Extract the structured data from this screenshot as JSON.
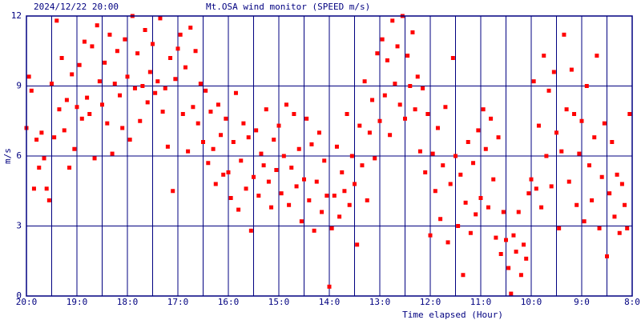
{
  "chart_data": {
    "type": "scatter",
    "title": "2024/12/22 20:00",
    "subtitle": "Mt.OSA wind monitor (SPEED m/s)",
    "y_label": "m/s",
    "x_label": "Time elapsed (Hour)",
    "color": "#ff0000",
    "grid": true,
    "xlim": [
      0,
      12
    ],
    "ylim": [
      0,
      12
    ],
    "yticks": [
      0,
      3,
      6,
      9,
      12
    ],
    "xticks": [
      {
        "value": 0,
        "label": "20:0"
      },
      {
        "value": 1,
        "label": "19:0"
      },
      {
        "value": 2,
        "label": "18:0"
      },
      {
        "value": 3,
        "label": "17:0"
      },
      {
        "value": 4,
        "label": "16:0"
      },
      {
        "value": 5,
        "label": "15:0"
      },
      {
        "value": 6,
        "label": "14:0"
      },
      {
        "value": 7,
        "label": "13:0"
      },
      {
        "value": 8,
        "label": "12:0"
      },
      {
        "value": 9,
        "label": "11:0"
      },
      {
        "value": 10,
        "label": "10:0"
      },
      {
        "value": 11,
        "label": "9:0"
      },
      {
        "value": 12,
        "label": "8:0"
      }
    ],
    "xminorticks": [
      0.5,
      1.5,
      2.5,
      3.5,
      4.5,
      5.5,
      6.5,
      7.5,
      8.5,
      9.5,
      10.5,
      11.5
    ],
    "x": [
      0.0,
      0.05,
      0.1,
      0.15,
      0.2,
      0.25,
      0.3,
      0.35,
      0.4,
      0.45,
      0.5,
      0.55,
      0.6,
      0.65,
      0.7,
      0.75,
      0.8,
      0.85,
      0.9,
      0.95,
      1.0,
      1.05,
      1.1,
      1.15,
      1.2,
      1.25,
      1.3,
      1.35,
      1.4,
      1.45,
      1.5,
      1.55,
      1.6,
      1.65,
      1.7,
      1.75,
      1.8,
      1.85,
      1.9,
      1.95,
      2.0,
      2.05,
      2.1,
      2.15,
      2.2,
      2.25,
      2.3,
      2.35,
      2.4,
      2.45,
      2.5,
      2.55,
      2.6,
      2.65,
      2.7,
      2.75,
      2.8,
      2.85,
      2.9,
      2.95,
      3.0,
      3.05,
      3.1,
      3.15,
      3.2,
      3.25,
      3.3,
      3.35,
      3.4,
      3.45,
      3.5,
      3.55,
      3.6,
      3.65,
      3.7,
      3.75,
      3.8,
      3.85,
      3.9,
      3.95,
      4.0,
      4.05,
      4.1,
      4.15,
      4.2,
      4.25,
      4.3,
      4.35,
      4.4,
      4.45,
      4.5,
      4.55,
      4.6,
      4.65,
      4.7,
      4.75,
      4.8,
      4.85,
      4.9,
      4.95,
      5.0,
      5.05,
      5.1,
      5.15,
      5.2,
      5.25,
      5.3,
      5.35,
      5.4,
      5.45,
      5.5,
      5.55,
      5.6,
      5.65,
      5.7,
      5.75,
      5.8,
      5.85,
      5.9,
      5.95,
      6.0,
      6.05,
      6.1,
      6.15,
      6.2,
      6.25,
      6.3,
      6.35,
      6.4,
      6.45,
      6.5,
      6.55,
      6.6,
      6.65,
      6.7,
      6.75,
      6.8,
      6.85,
      6.9,
      6.95,
      7.0,
      7.05,
      7.1,
      7.15,
      7.2,
      7.25,
      7.3,
      7.35,
      7.4,
      7.45,
      7.5,
      7.55,
      7.6,
      7.65,
      7.7,
      7.75,
      7.8,
      7.85,
      7.9,
      7.95,
      8.0,
      8.05,
      8.1,
      8.15,
      8.2,
      8.25,
      8.3,
      8.35,
      8.4,
      8.45,
      8.5,
      8.55,
      8.6,
      8.65,
      8.7,
      8.75,
      8.8,
      8.85,
      8.9,
      8.95,
      9.0,
      9.05,
      9.1,
      9.15,
      9.2,
      9.25,
      9.3,
      9.35,
      9.4,
      9.45,
      9.5,
      9.55,
      9.6,
      9.65,
      9.7,
      9.75,
      9.8,
      9.85,
      9.9,
      9.95,
      10.0,
      10.05,
      10.1,
      10.15,
      10.2,
      10.25,
      10.3,
      10.35,
      10.4,
      10.45,
      10.5,
      10.55,
      10.6,
      10.65,
      10.7,
      10.75,
      10.8,
      10.85,
      10.9,
      10.95,
      11.0,
      11.05,
      11.1,
      11.15,
      11.2,
      11.25,
      11.3,
      11.35,
      11.4,
      11.45,
      11.5,
      11.55,
      11.6,
      11.65,
      11.7,
      11.75,
      11.8,
      11.85,
      11.9,
      11.95
    ],
    "values": [
      7.2,
      9.4,
      8.8,
      4.6,
      6.7,
      5.5,
      7.0,
      5.9,
      4.6,
      4.1,
      9.1,
      6.8,
      11.8,
      8.0,
      10.2,
      7.1,
      8.4,
      5.5,
      9.5,
      6.3,
      8.1,
      9.9,
      7.6,
      10.9,
      8.5,
      7.8,
      10.7,
      5.9,
      11.6,
      9.2,
      8.2,
      10.0,
      7.4,
      11.2,
      6.1,
      9.1,
      10.5,
      8.6,
      7.2,
      11.0,
      9.4,
      6.7,
      12.0,
      8.9,
      10.4,
      7.5,
      9.0,
      11.4,
      8.3,
      9.6,
      10.8,
      8.7,
      9.2,
      11.9,
      7.9,
      8.9,
      6.4,
      10.2,
      4.5,
      9.3,
      10.6,
      11.2,
      7.8,
      9.8,
      6.2,
      11.5,
      8.1,
      10.5,
      7.4,
      9.1,
      6.6,
      8.8,
      5.7,
      7.9,
      6.3,
      4.8,
      8.2,
      6.9,
      5.2,
      7.6,
      5.3,
      4.2,
      6.6,
      8.7,
      3.7,
      5.8,
      7.4,
      4.6,
      6.8,
      2.8,
      5.1,
      7.1,
      4.3,
      6.1,
      5.6,
      8.0,
      4.9,
      3.8,
      6.7,
      5.4,
      7.3,
      4.4,
      6.0,
      8.2,
      3.9,
      5.5,
      7.8,
      4.7,
      6.3,
      3.2,
      5.0,
      7.6,
      4.1,
      6.5,
      2.8,
      4.9,
      7.0,
      3.6,
      5.8,
      4.3,
      0.4,
      2.9,
      4.3,
      6.4,
      3.4,
      5.3,
      4.5,
      7.8,
      3.9,
      6.0,
      4.8,
      2.2,
      7.3,
      5.6,
      9.2,
      4.1,
      7.0,
      8.4,
      5.9,
      10.4,
      7.5,
      11.0,
      8.6,
      10.1,
      6.9,
      11.8,
      9.1,
      10.7,
      8.2,
      12.0,
      7.6,
      10.3,
      9.0,
      11.3,
      8.0,
      9.4,
      6.2,
      8.9,
      5.3,
      7.8,
      2.6,
      6.1,
      4.5,
      7.2,
      3.3,
      5.6,
      8.1,
      2.3,
      4.8,
      10.2,
      6.0,
      3.0,
      5.2,
      0.9,
      4.0,
      6.6,
      2.7,
      5.7,
      3.5,
      7.1,
      4.2,
      8.0,
      6.3,
      3.8,
      7.6,
      5.0,
      2.5,
      6.8,
      1.8,
      3.6,
      2.4,
      1.2,
      0.1,
      2.6,
      1.9,
      3.6,
      0.9,
      2.2,
      1.6,
      4.4,
      5.0,
      9.2,
      4.6,
      7.3,
      3.8,
      10.3,
      6.0,
      8.8,
      4.7,
      9.6,
      7.0,
      2.9,
      6.2,
      11.2,
      8.0,
      4.9,
      9.7,
      7.8,
      3.9,
      6.1,
      7.5,
      3.2,
      9.0,
      5.6,
      4.1,
      6.8,
      10.3,
      2.9,
      5.1,
      7.4,
      1.7,
      4.4,
      6.6,
      3.4,
      5.2,
      2.7,
      4.8,
      3.9,
      2.9,
      7.8
    ]
  }
}
